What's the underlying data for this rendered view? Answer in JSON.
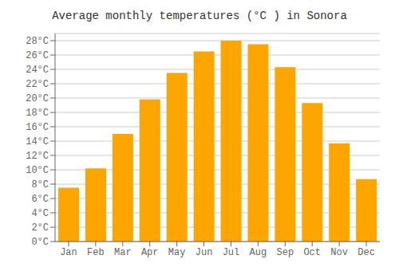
{
  "chart_data": {
    "type": "bar",
    "title": "Average monthly temperatures (°C ) in Sonora",
    "categories": [
      "Jan",
      "Feb",
      "Mar",
      "Apr",
      "May",
      "Jun",
      "Jul",
      "Aug",
      "Sep",
      "Oct",
      "Nov",
      "Dec"
    ],
    "values": [
      7.5,
      10.2,
      15.0,
      19.8,
      23.5,
      26.5,
      28.0,
      27.5,
      24.3,
      19.3,
      13.7,
      8.7
    ],
    "color": "#FFA500",
    "ylim": [
      0,
      29
    ],
    "yticks": [
      {
        "value": 0,
        "label": "0°C"
      },
      {
        "value": 2,
        "label": "2°C"
      },
      {
        "value": 4,
        "label": "4°C"
      },
      {
        "value": 6,
        "label": "6°C"
      },
      {
        "value": 8,
        "label": "8°C"
      },
      {
        "value": 10,
        "label": "10°C"
      },
      {
        "value": 12,
        "label": "12°C"
      },
      {
        "value": 14,
        "label": "14°C"
      },
      {
        "value": 16,
        "label": "16°C"
      },
      {
        "value": 18,
        "label": "18°C"
      },
      {
        "value": 20,
        "label": "20°C"
      },
      {
        "value": 22,
        "label": "22°C"
      },
      {
        "value": 24,
        "label": "24°C"
      },
      {
        "value": 26,
        "label": "26°C"
      },
      {
        "value": 28,
        "label": "28°C"
      }
    ],
    "grid": true
  }
}
